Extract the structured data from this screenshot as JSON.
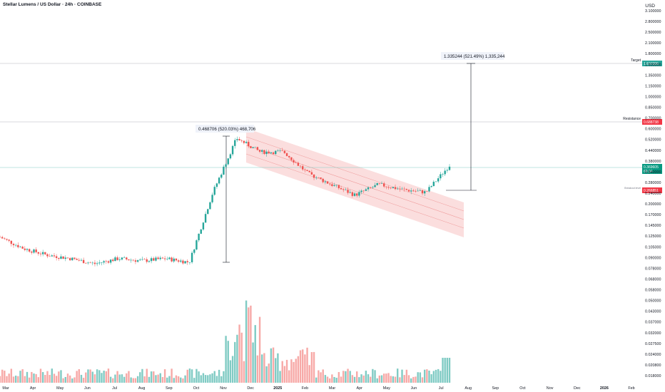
{
  "header": {
    "title": "Stellar Lumens / US Dollar · 24h · COINBASE",
    "currency": "USD"
  },
  "price_axis": {
    "ticks": [
      "3.100000",
      "2.800000",
      "2.500000",
      "2.100000",
      "1.800000",
      "1.600000",
      "1.350000",
      "1.150000",
      "1.000000",
      "0.850000",
      "0.700000",
      "0.600000",
      "0.520000",
      "0.440000",
      "0.380000",
      "0.340000",
      "0.280000",
      "0.240000",
      "0.200000",
      "0.170000",
      "0.145000",
      "0.125000",
      "0.105000",
      "0.090000",
      "0.078000",
      "0.068000",
      "0.058000",
      "0.050000",
      "0.043000",
      "0.037000",
      "0.032000",
      "0.027500",
      "0.024000",
      "0.020800",
      "0.018000"
    ]
  },
  "time_axis": {
    "labels": [
      "Mar",
      "Apr",
      "May",
      "Jun",
      "Jul",
      "Aug",
      "Sep",
      "Oct",
      "Nov",
      "Dec",
      "2025",
      "Feb",
      "Mar",
      "Apr",
      "May",
      "Jun",
      "Jul",
      "Aug",
      "Sep",
      "Oct",
      "Nov",
      "Dec",
      "2026",
      "Feb"
    ]
  },
  "levels": {
    "target": {
      "label": "Target",
      "value": "1.637286"
    },
    "resistance": {
      "label": "Resistance",
      "value": "0.688738"
    },
    "current": {
      "value": "0.369605",
      "sub": "68:34"
    },
    "breakout": {
      "label": "Breakout level",
      "value": "0.266851"
    }
  },
  "annotations": {
    "upper_measure": "1.335244 (521.49%) 1,335,244",
    "lower_measure": "0.468706 (520.03%) 468,706"
  },
  "colors": {
    "up": "#26a69a",
    "down": "#ef5350",
    "channel": "#f7c5c5",
    "target": "#26a69a",
    "resistance": "#f23645",
    "current": "#089981"
  },
  "chart_data": {
    "type": "candlestick",
    "title": "Stellar Lumens / US Dollar · 24h · COINBASE",
    "y_scale": "log",
    "y_unit": "USD",
    "approx_closes": [
      {
        "date": "2024-03",
        "close": 0.13
      },
      {
        "date": "2024-04",
        "close": 0.11
      },
      {
        "date": "2024-05",
        "close": 0.1
      },
      {
        "date": "2024-06",
        "close": 0.095
      },
      {
        "date": "2024-07",
        "close": 0.088
      },
      {
        "date": "2024-08",
        "close": 0.095
      },
      {
        "date": "2024-09",
        "close": 0.092
      },
      {
        "date": "2024-10",
        "close": 0.095
      },
      {
        "date": "2024-11",
        "close": 0.09
      },
      {
        "date": "2024-11-15",
        "close": 0.25
      },
      {
        "date": "2024-11-25",
        "close": 0.55
      },
      {
        "date": "2024-12",
        "close": 0.45
      },
      {
        "date": "2025-01",
        "close": 0.45
      },
      {
        "date": "2025-02",
        "close": 0.33
      },
      {
        "date": "2025-03",
        "close": 0.28
      },
      {
        "date": "2025-04",
        "close": 0.24
      },
      {
        "date": "2025-05",
        "close": 0.28
      },
      {
        "date": "2025-06",
        "close": 0.26
      },
      {
        "date": "2025-07",
        "close": 0.25
      },
      {
        "date": "2025-07-14",
        "close": 0.37
      }
    ],
    "horizontal_levels": [
      {
        "name": "Target",
        "value": 1.637286
      },
      {
        "name": "Resistance",
        "value": 0.688738
      },
      {
        "name": "Current",
        "value": 0.369605
      },
      {
        "name": "Breakout level",
        "value": 0.266851
      }
    ],
    "volume": {
      "peak_month": "2024-11",
      "note": "volume histogram at bottom"
    }
  }
}
